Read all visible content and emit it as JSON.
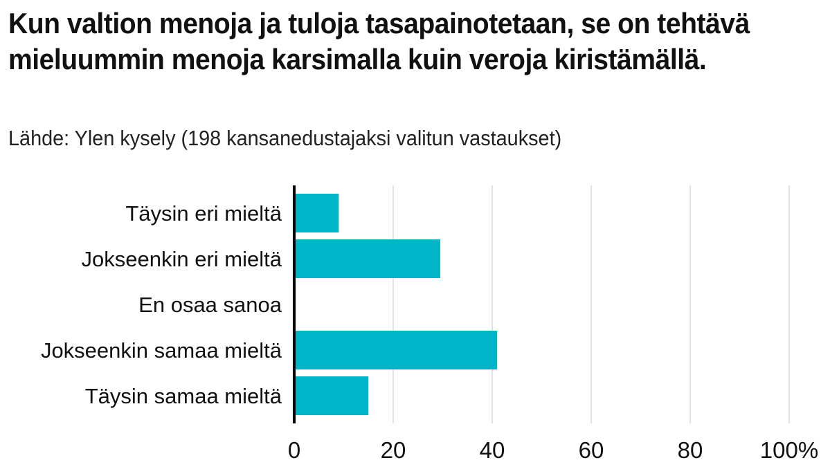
{
  "chart_data": {
    "type": "bar",
    "orientation": "horizontal",
    "title": "Kun valtion menoja ja tuloja tasapainotetaan, se on tehtävä mieluummin menoja karsimalla kuin veroja kiristämällä.",
    "subtitle": "Lähde: Ylen kysely (198 kansanedustajaksi valitun vastaukset)",
    "categories": [
      "Täysin eri mieltä",
      "Jokseenkin eri mieltä",
      "En osaa sanoa",
      "Jokseenkin samaa mieltä",
      "Täysin samaa mieltä"
    ],
    "values": [
      9,
      29.5,
      0,
      41,
      15
    ],
    "xlim": [
      0,
      100
    ],
    "ticks": [
      0,
      20,
      40,
      60,
      80,
      100
    ],
    "tick_labels": [
      "0",
      "20",
      "40",
      "60",
      "80",
      "100%"
    ],
    "bar_color": "#00b5c8",
    "grid": true,
    "grid_color": "#e3e3e3",
    "axis_color": "#000000"
  }
}
